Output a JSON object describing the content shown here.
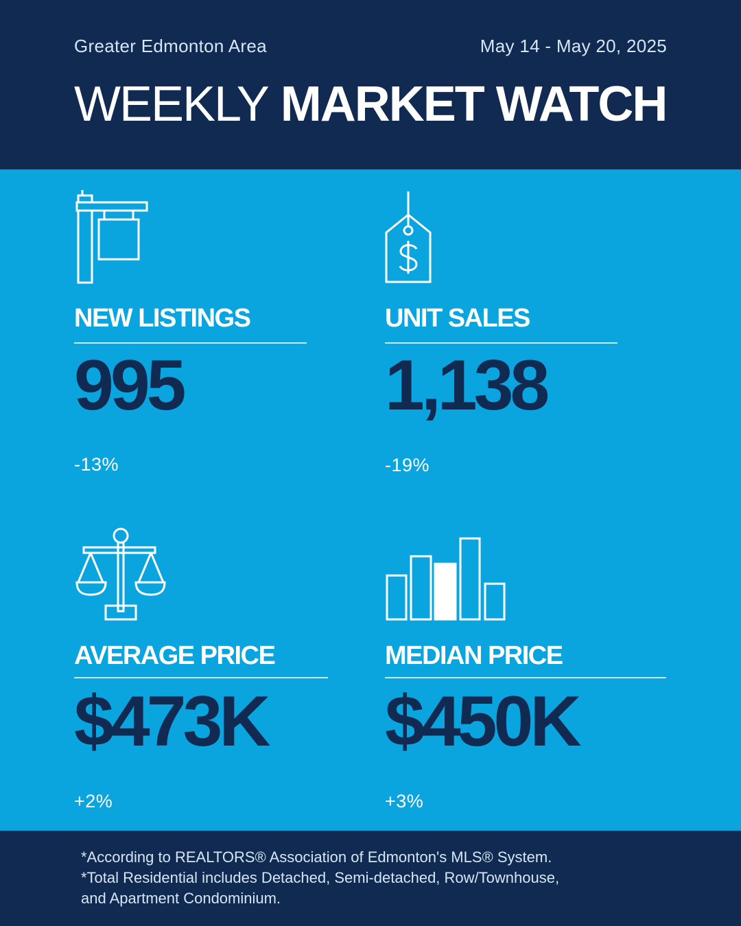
{
  "header": {
    "region": "Greater Edmonton Area",
    "dates": "May 14 - May 20, 2025",
    "title_light": "WEEKLY",
    "title_bold": "MARKET WATCH"
  },
  "stats": [
    {
      "icon": "for-sale-sign-icon",
      "label": "NEW LISTINGS",
      "value": "995",
      "change": "-13%"
    },
    {
      "icon": "price-tag-icon",
      "label": "UNIT SALES",
      "value": "1,138",
      "change": "-19%"
    },
    {
      "icon": "balance-scale-icon",
      "label": "AVERAGE PRICE",
      "value": "$473K",
      "change": "+2%"
    },
    {
      "icon": "bar-chart-icon",
      "label": "MEDIAN PRICE",
      "value": "$450K",
      "change": "+3%"
    }
  ],
  "footer": {
    "lines": [
      "*According to REALTORS® Association of Edmonton's MLS® System.",
      "*Total Residential includes Detached, Semi-detached, Row/Townhouse,",
      "and Apartment Condominium."
    ]
  },
  "colors": {
    "navy": "#112a52",
    "sky": "#0aa4de",
    "white": "#ffffff"
  }
}
